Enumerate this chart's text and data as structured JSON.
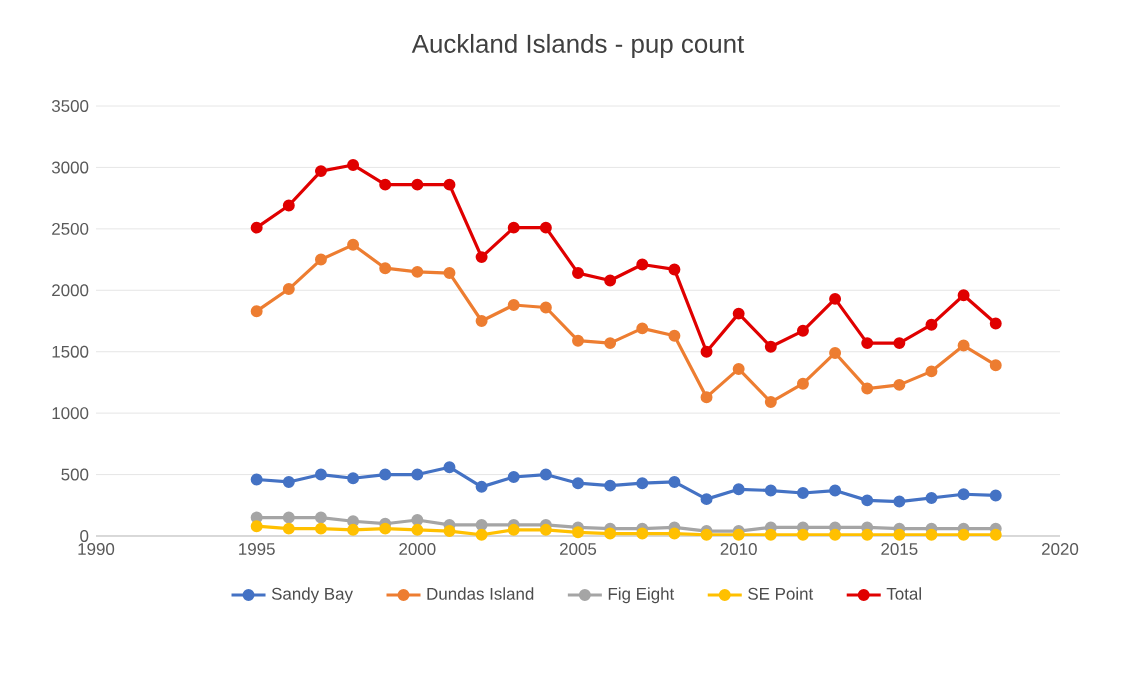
{
  "chart_data": {
    "type": "line",
    "title": "Auckland Islands - pup count",
    "x": [
      1995,
      1996,
      1997,
      1998,
      1999,
      2000,
      2001,
      2002,
      2003,
      2004,
      2005,
      2006,
      2007,
      2008,
      2009,
      2010,
      2011,
      2012,
      2013,
      2014,
      2015,
      2016,
      2017,
      2018
    ],
    "series": [
      {
        "name": "Sandy Bay",
        "color": "#4472c4",
        "values": [
          460,
          440,
          500,
          470,
          500,
          500,
          560,
          400,
          480,
          500,
          430,
          410,
          430,
          440,
          300,
          380,
          370,
          350,
          370,
          290,
          280,
          310,
          340,
          330
        ]
      },
      {
        "name": "Dundas Island",
        "color": "#ed7d31",
        "values": [
          1830,
          2010,
          2250,
          2370,
          2180,
          2150,
          2140,
          1750,
          1880,
          1860,
          1590,
          1570,
          1690,
          1630,
          1130,
          1360,
          1090,
          1240,
          1490,
          1200,
          1230,
          1340,
          1550,
          1390
        ]
      },
      {
        "name": "Fig Eight",
        "color": "#a5a5a5",
        "values": [
          150,
          150,
          150,
          120,
          100,
          130,
          90,
          90,
          90,
          90,
          70,
          60,
          60,
          70,
          40,
          40,
          70,
          70,
          70,
          70,
          60,
          60,
          60,
          60
        ]
      },
      {
        "name": "SE Point",
        "color": "#ffc000",
        "values": [
          80,
          60,
          60,
          50,
          60,
          50,
          40,
          10,
          50,
          50,
          30,
          20,
          20,
          20,
          10,
          10,
          10,
          10,
          10,
          10,
          10,
          10,
          10,
          10
        ]
      },
      {
        "name": "Total",
        "color": "#e00000",
        "values": [
          2510,
          2690,
          2970,
          3020,
          2860,
          2860,
          2860,
          2270,
          2510,
          2510,
          2140,
          2080,
          2210,
          2170,
          1500,
          1810,
          1540,
          1670,
          1930,
          1570,
          1570,
          1720,
          1960,
          1730
        ]
      }
    ],
    "xlim": [
      1990,
      2020
    ],
    "xticks": [
      1990,
      1995,
      2000,
      2005,
      2010,
      2015,
      2020
    ],
    "ylim": [
      0,
      3500
    ],
    "yticks": [
      0,
      500,
      1000,
      1500,
      2000,
      2500,
      3000,
      3500
    ],
    "grid": "y",
    "legend": "bottom",
    "marker": "circle",
    "line_style": "solid"
  }
}
